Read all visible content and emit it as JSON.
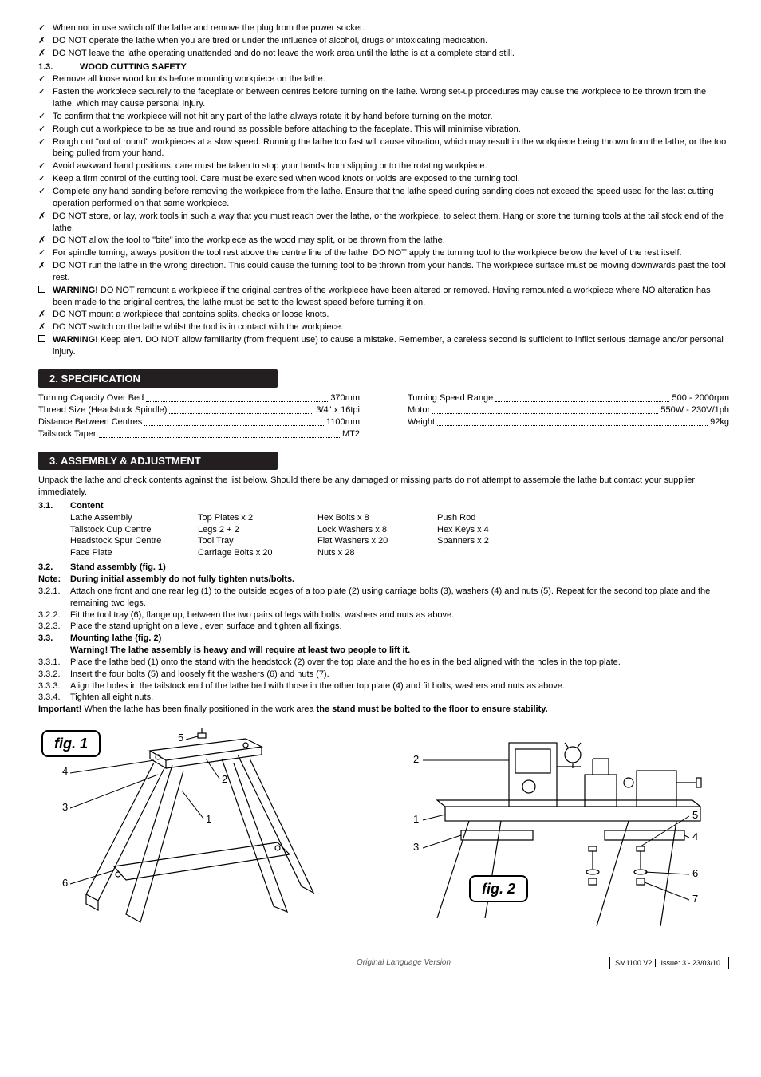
{
  "safety_bullets": [
    {
      "mark": "✓",
      "text": "When not in use switch off the lathe and remove the plug from the power socket."
    },
    {
      "mark": "✗",
      "text": "DO NOT operate the lathe when you are tired or under the influence of alcohol, drugs or intoxicating medication."
    },
    {
      "mark": "✗",
      "text": "DO NOT leave the lathe operating unattended and do not leave the work area until the lathe is at a complete stand still."
    }
  ],
  "subhead13": {
    "num": "1.3.",
    "title": "WOOD CUTTING SAFETY"
  },
  "wood_bullets": [
    {
      "mark": "✓",
      "text": "Remove all loose wood knots before mounting workpiece on the lathe."
    },
    {
      "mark": "✓",
      "text": "Fasten the workpiece securely to the faceplate or between centres before turning on the lathe. Wrong set-up procedures may cause the workpiece to be thrown from the lathe, which may cause personal injury."
    },
    {
      "mark": "✓",
      "text": "To confirm that the workpiece will not hit any part of the lathe always rotate it by hand before turning on the motor."
    },
    {
      "mark": "✓",
      "text": "Rough out a workpiece to be as true and round as possible before attaching to the faceplate. This will minimise vibration."
    },
    {
      "mark": "✓",
      "text": "Rough out \"out of round\" workpieces at a slow speed. Running the lathe too fast will cause vibration, which may result in the workpiece being thrown from the lathe, or the tool being pulled from your hand."
    },
    {
      "mark": "✓",
      "text": "Avoid awkward hand positions, care must be taken to stop your hands from slipping onto the rotating workpiece."
    },
    {
      "mark": "✓",
      "text": "Keep a firm control of the cutting tool. Care must be exercised when wood knots or voids are exposed to the turning tool."
    },
    {
      "mark": "✓",
      "text": "Complete any hand sanding before removing the workpiece from the lathe. Ensure that the lathe speed during sanding does not exceed the speed used for the last cutting operation performed on that same workpiece."
    },
    {
      "mark": "✗",
      "text": "DO NOT store, or lay, work tools in such a way that you must reach over the lathe, or the workpiece, to select them. Hang or store the turning tools at the tail stock end of the lathe."
    },
    {
      "mark": "✗",
      "text": "DO NOT allow the tool to \"bite\" into the workpiece as the wood may split, or be thrown from the lathe."
    },
    {
      "mark": "✓",
      "text": "For spindle turning, always position the tool rest above the centre line of the lathe. DO NOT apply the turning tool to the workpiece below the level of the rest itself."
    },
    {
      "mark": "✗",
      "text": "DO NOT run the lathe in the wrong direction. This could cause the turning tool to be thrown from your hands. The workpiece surface must be moving downwards past the tool rest."
    },
    {
      "mark": "box",
      "bold": "WARNING!",
      "text": " DO NOT remount a workpiece if the original centres of the workpiece have been altered or removed. Having remounted a workpiece where NO alteration has been made to the original centres, the lathe must be set to the lowest speed before turning it on."
    },
    {
      "mark": "✗",
      "text": "DO NOT mount a workpiece that contains splits, checks or loose knots."
    },
    {
      "mark": "✗",
      "text": "DO NOT switch on the lathe whilst the tool is in contact with the workpiece."
    },
    {
      "mark": "box",
      "bold": "WARNING!",
      "text": " Keep alert. DO NOT allow familiarity (from frequent use) to cause a mistake. Remember, a careless second is sufficient to inflict serious damage and/or personal injury."
    }
  ],
  "sec2": {
    "title": "2.  SPECIFICATION"
  },
  "spec_left": [
    {
      "lbl": "Turning Capacity Over Bed",
      "val": "370mm"
    },
    {
      "lbl": "Thread Size (Headstock Spindle)",
      "val": "3/4\" x 16tpi"
    },
    {
      "lbl": "Distance Between Centres",
      "val": "1100mm"
    },
    {
      "lbl": "Tailstock Taper",
      "val": "MT2"
    }
  ],
  "spec_right": [
    {
      "lbl": "Turning Speed Range",
      "val": "500 - 2000rpm"
    },
    {
      "lbl": "Motor",
      "val": "550W - 230V/1ph"
    },
    {
      "lbl": "Weight",
      "val": "92kg"
    }
  ],
  "sec3": {
    "title": "3.  ASSEMBLY & ADJUSTMENT"
  },
  "sec3_intro": "Unpack the lathe and check contents against the list below. Should there be any damaged or missing parts do not attempt to assemble the lathe but contact your supplier immediately.",
  "s31": {
    "n": "3.1.",
    "t": "Content"
  },
  "content_cols": {
    "c1": [
      "Lathe Assembly",
      "Tailstock Cup Centre",
      "Headstock Spur Centre",
      "Face Plate"
    ],
    "c2": [
      "Top Plates x 2",
      "Legs 2 + 2",
      "Tool Tray",
      "Carriage Bolts x 20"
    ],
    "c3": [
      "Hex Bolts x 8",
      "Lock Washers x 8",
      "Flat Washers x 20",
      "Nuts x 28"
    ],
    "c4": [
      "Push Rod",
      "Hex Keys x 4",
      "Spanners x 2"
    ]
  },
  "s32": {
    "n": "3.2.",
    "t": "Stand assembly (fig. 1)"
  },
  "note": {
    "n": "Note:",
    "t": "During initial assembly do not fully tighten nuts/bolts."
  },
  "s321": {
    "n": "3.2.1.",
    "t": "Attach one front and one rear leg (1) to the outside edges of a top plate (2) using carriage bolts (3), washers (4) and nuts (5). Repeat for the second top plate and the remaining two legs."
  },
  "s322": {
    "n": "3.2.2.",
    "t": "Fit the tool tray (6), flange up, between the two pairs of legs with bolts, washers and nuts as above."
  },
  "s323": {
    "n": "3.2.3.",
    "t": "Place the stand upright on a level, even surface and tighten all fixings."
  },
  "s33": {
    "n": "3.3.",
    "t": "Mounting lathe (fig. 2)"
  },
  "s33w": "Warning! The lathe assembly is heavy and will require at least two people to lift it.",
  "s331": {
    "n": "3.3.1.",
    "t": "Place the lathe bed (1) onto the stand with the headstock (2) over the top plate and the holes in the bed aligned with the holes in the top plate."
  },
  "s332": {
    "n": "3.3.2.",
    "t": "Insert the four bolts (5) and loosely fit the washers (6) and nuts (7)."
  },
  "s333": {
    "n": "3.3.3.",
    "t": "Align the holes in the tailstock end of the lathe bed with those in the other top plate (4) and fit bolts, washers and nuts as above."
  },
  "s334": {
    "n": "3.3.4.",
    "t": "Tighten all eight nuts."
  },
  "important_a": "Important!",
  "important_b": " When the lathe has been finally positioned in the work area ",
  "important_c": "the stand must be bolted to the floor to ensure stability.",
  "fig1_label": "fig. 1",
  "fig2_label": "fig. 2",
  "footer_mid": "Original Language Version",
  "footer_model": "SM1100.V2",
  "footer_issue": "Issue: 3 - 23/03/10"
}
